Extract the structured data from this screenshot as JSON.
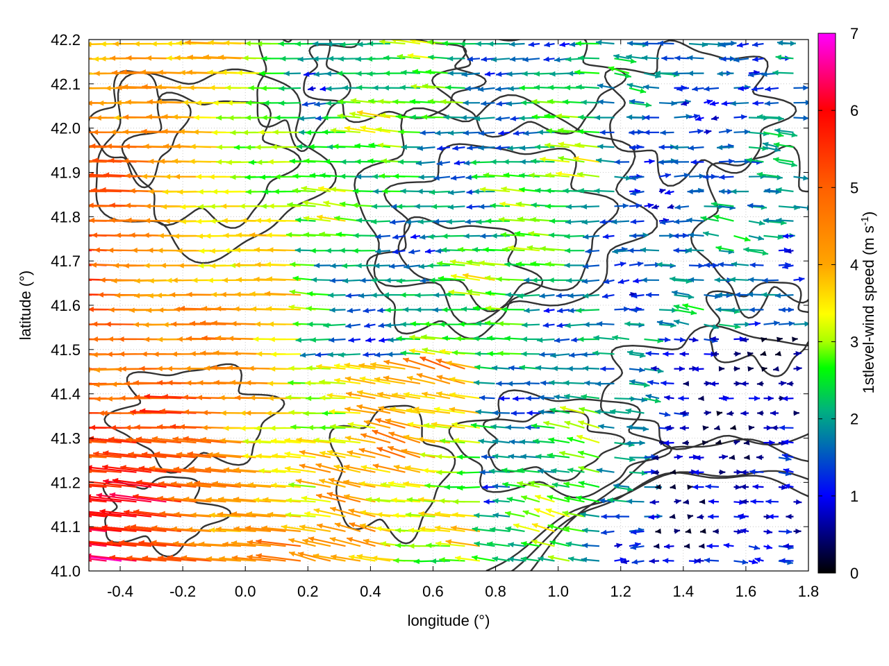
{
  "chart_data": {
    "type": "vector-field",
    "xlabel": "longitude (°)",
    "ylabel": "latitude (°)",
    "xlim": [
      -0.5,
      1.8
    ],
    "ylim": [
      41.0,
      42.2
    ],
    "xticks": [
      "-0.4",
      "-0.2",
      "0.0",
      "0.2",
      "0.4",
      "0.6",
      "0.8",
      "1.0",
      "1.2",
      "1.4",
      "1.6",
      "1.8"
    ],
    "yticks": [
      "41.0",
      "41.1",
      "41.2",
      "41.3",
      "41.4",
      "41.5",
      "41.6",
      "41.7",
      "41.8",
      "41.9",
      "42.0",
      "42.1",
      "42.2"
    ],
    "grid": true,
    "colorbar": {
      "label_main": "1stlevel-wind speed (m s",
      "label_exp": "-1",
      "label_end": ")",
      "range": [
        0,
        7
      ],
      "ticks": [
        "0",
        "1",
        "2",
        "3",
        "4",
        "5",
        "6",
        "7"
      ],
      "palette": [
        "#000000",
        "#0000ff",
        "#00a0a0",
        "#00ff00",
        "#ffff00",
        "#ff9900",
        "#ff0000",
        "#ff00ff"
      ]
    },
    "contour_color": "#333333",
    "field_sample": {
      "description_of_regions": "",
      "west_band_speed_ms": 4.5,
      "central_speed_ms": 2.2,
      "southeast_speed_ms": 0.8
    }
  }
}
